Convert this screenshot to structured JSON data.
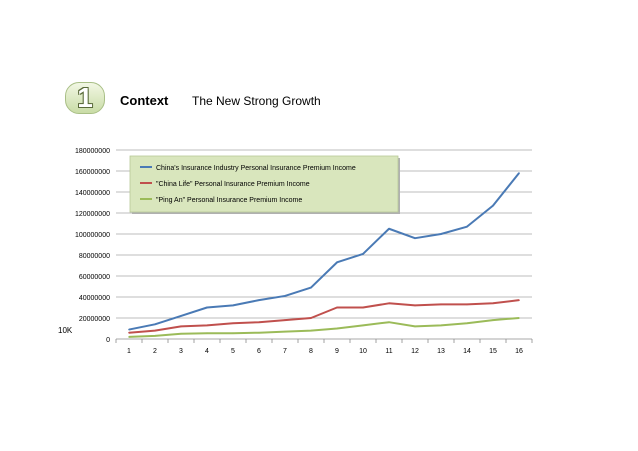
{
  "header": {
    "badge_number": "1",
    "section_label": "Context",
    "subtitle": "The New Strong Growth"
  },
  "chart_data": {
    "type": "line",
    "x": [
      1,
      2,
      3,
      4,
      5,
      6,
      7,
      8,
      9,
      10,
      11,
      12,
      13,
      14,
      15,
      16
    ],
    "ylim": [
      0,
      180000000
    ],
    "y_ticks": [
      0,
      20000000,
      40000000,
      60000000,
      80000000,
      100000000,
      120000000,
      140000000,
      160000000,
      180000000
    ],
    "unit_label": "10K",
    "grid": true,
    "legend_placement": "top-left",
    "series": [
      {
        "name": "China's Insurance Industry Personal Insurance Premium Income",
        "color": "#4a7ab5",
        "values": [
          9000000,
          14000000,
          22000000,
          30000000,
          32000000,
          37000000,
          41000000,
          49000000,
          73000000,
          81000000,
          105000000,
          96000000,
          100000000,
          107000000,
          127000000,
          158000000
        ]
      },
      {
        "name": "\"China Life\" Personal Insurance Premium Income",
        "color": "#c0504d",
        "values": [
          6000000,
          8000000,
          12000000,
          13000000,
          15000000,
          16000000,
          18000000,
          20000000,
          30000000,
          30000000,
          34000000,
          32000000,
          33000000,
          33000000,
          34000000,
          37000000
        ]
      },
      {
        "name": "\"Ping An\" Personal Insurance Premium Income",
        "color": "#9bbb59",
        "values": [
          2000000,
          3000000,
          5000000,
          5500000,
          5500000,
          6000000,
          7000000,
          8000000,
          10000000,
          13000000,
          16000000,
          12000000,
          13000000,
          15000000,
          18000000,
          20000000
        ]
      }
    ]
  }
}
